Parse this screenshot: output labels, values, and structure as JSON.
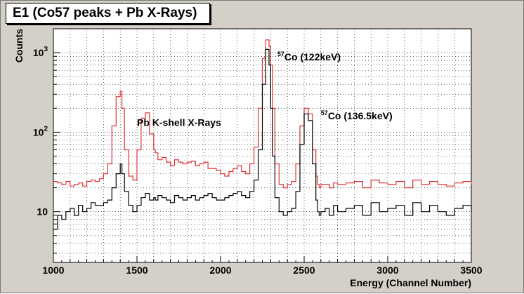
{
  "chart_data": {
    "type": "line",
    "title": "E1 (Co57 peaks + Pb X-Rays)",
    "xlabel": "Energy (Channel Number)",
    "ylabel": "Counts",
    "xlim": [
      1000,
      3500
    ],
    "ylim": [
      2.3,
      2000
    ],
    "y_scale": "log",
    "grid": true,
    "x_ticks": [
      "1000",
      "1500",
      "2000",
      "2500",
      "3000",
      "3500"
    ],
    "y_ticks": [
      {
        "base": "10",
        "exp": ""
      },
      {
        "base": "10",
        "exp": "2"
      },
      {
        "base": "10",
        "exp": "3"
      }
    ],
    "annotations": [
      {
        "id": "pb",
        "sup": "",
        "text": "Pb K-shell X-Rays",
        "x": 1500,
        "y": 120
      },
      {
        "id": "co122",
        "sup": "57",
        "text": "Co (122keV)",
        "x": 2340,
        "y": 800
      },
      {
        "id": "co136",
        "sup": "57",
        "text": "Co (136.5keV)",
        "x": 2600,
        "y": 145
      }
    ],
    "series": [
      {
        "color": "#e03030",
        "x": [
          1000,
          1025,
          1050,
          1075,
          1100,
          1125,
          1150,
          1175,
          1200,
          1225,
          1250,
          1275,
          1300,
          1325,
          1350,
          1375,
          1400,
          1410,
          1425,
          1450,
          1475,
          1500,
          1525,
          1550,
          1575,
          1600,
          1610,
          1625,
          1650,
          1675,
          1700,
          1725,
          1750,
          1775,
          1800,
          1825,
          1850,
          1875,
          1900,
          1925,
          1950,
          1975,
          2000,
          2025,
          2050,
          2075,
          2100,
          2125,
          2150,
          2175,
          2200,
          2225,
          2250,
          2270,
          2290,
          2300,
          2310,
          2325,
          2350,
          2375,
          2400,
          2425,
          2450,
          2475,
          2500,
          2525,
          2550,
          2570,
          2580,
          2590,
          2600,
          2625,
          2650,
          2675,
          2700,
          2750,
          2800,
          2850,
          2900,
          2950,
          3000,
          3050,
          3100,
          3150,
          3200,
          3250,
          3300,
          3350,
          3400,
          3450,
          3500
        ],
        "values": [
          24,
          23,
          22,
          24,
          21,
          22,
          23,
          21,
          24,
          25,
          24,
          26,
          30,
          40,
          120,
          280,
          330,
          200,
          60,
          28,
          25,
          60,
          150,
          175,
          95,
          60,
          55,
          45,
          48,
          42,
          38,
          45,
          42,
          40,
          42,
          43,
          38,
          40,
          42,
          35,
          35,
          33,
          30,
          28,
          32,
          35,
          38,
          32,
          30,
          40,
          65,
          200,
          850,
          1450,
          1200,
          700,
          200,
          40,
          22,
          20,
          22,
          24,
          40,
          120,
          200,
          170,
          60,
          28,
          22,
          20,
          22,
          22,
          20,
          23,
          22,
          23,
          24,
          20,
          25,
          23,
          22,
          24,
          20,
          25,
          22,
          24,
          22,
          21,
          23,
          24,
          22
        ]
      },
      {
        "color": "#000000",
        "x": [
          1000,
          1025,
          1050,
          1075,
          1100,
          1125,
          1150,
          1175,
          1200,
          1225,
          1250,
          1275,
          1300,
          1325,
          1350,
          1375,
          1400,
          1410,
          1425,
          1450,
          1475,
          1500,
          1525,
          1550,
          1575,
          1600,
          1610,
          1625,
          1650,
          1675,
          1700,
          1725,
          1750,
          1775,
          1800,
          1825,
          1850,
          1875,
          1900,
          1925,
          1950,
          1975,
          2000,
          2025,
          2050,
          2075,
          2100,
          2125,
          2150,
          2175,
          2200,
          2225,
          2250,
          2270,
          2290,
          2300,
          2310,
          2325,
          2350,
          2375,
          2400,
          2425,
          2450,
          2475,
          2500,
          2525,
          2550,
          2570,
          2580,
          2590,
          2600,
          2625,
          2650,
          2675,
          2700,
          2750,
          2800,
          2850,
          2900,
          2950,
          3000,
          3050,
          3100,
          3150,
          3200,
          3250,
          3300,
          3350,
          3400,
          3450,
          3500
        ],
        "values": [
          6,
          9,
          8,
          10,
          11,
          9,
          12,
          10,
          11,
          13,
          12,
          12,
          13,
          14,
          20,
          30,
          40,
          30,
          18,
          12,
          10,
          12,
          15,
          17,
          14,
          15,
          14,
          16,
          15,
          14,
          13,
          16,
          15,
          14,
          15,
          16,
          14,
          15,
          16,
          17,
          15,
          14,
          14,
          15,
          16,
          17,
          18,
          16,
          15,
          18,
          25,
          60,
          400,
          1100,
          700,
          200,
          50,
          15,
          10,
          9,
          10,
          11,
          18,
          70,
          170,
          140,
          40,
          14,
          10,
          9,
          10,
          11,
          9,
          12,
          10,
          11,
          12,
          9,
          13,
          10,
          11,
          12,
          9,
          13,
          10,
          12,
          10,
          9,
          11,
          12,
          10
        ]
      }
    ]
  }
}
